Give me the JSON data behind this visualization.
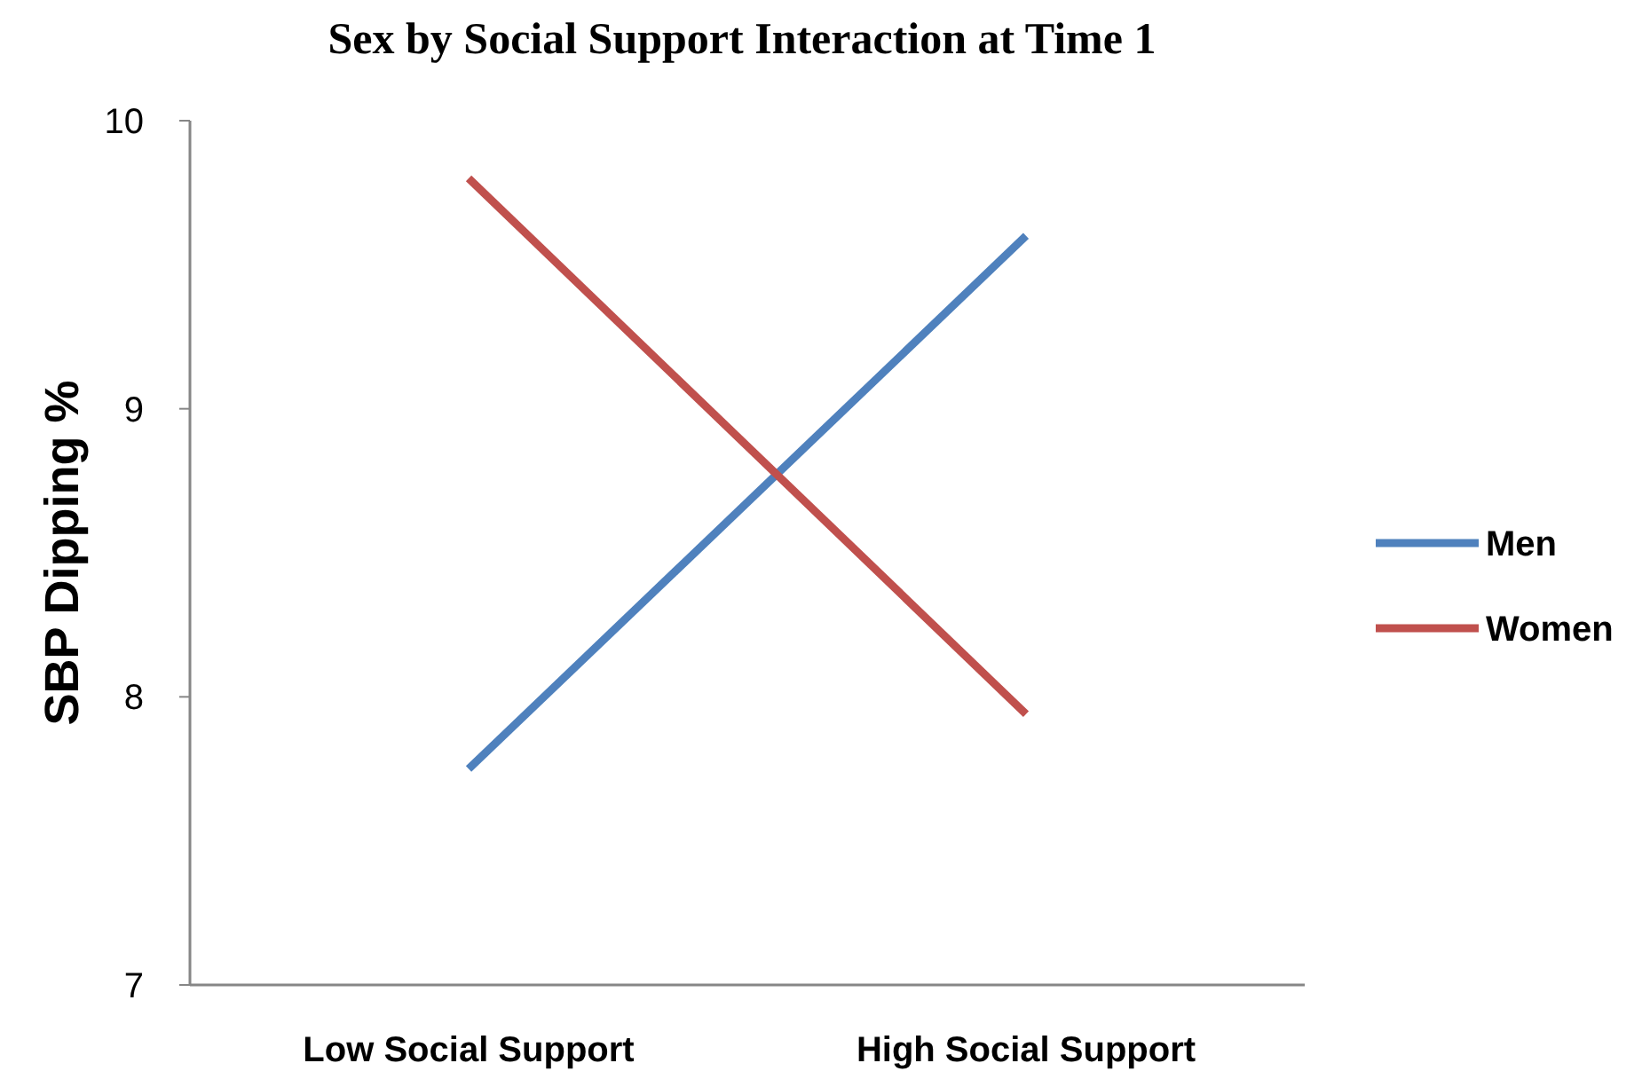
{
  "chart_data": {
    "type": "line",
    "title": "Sex by Social Support Interaction at Time 1",
    "ylabel": "SBP Dipping %",
    "categories": [
      "Low Social Support",
      "High Social Support"
    ],
    "series": [
      {
        "name": "Men",
        "color": "#4f81bd",
        "values": [
          7.75,
          9.6
        ]
      },
      {
        "name": "Women",
        "color": "#c0504d",
        "values": [
          9.8,
          7.94
        ]
      }
    ],
    "ylim": [
      7,
      10
    ],
    "yticks": [
      7,
      8,
      9,
      10
    ],
    "grid": false,
    "legend": "right",
    "marker": "none"
  }
}
